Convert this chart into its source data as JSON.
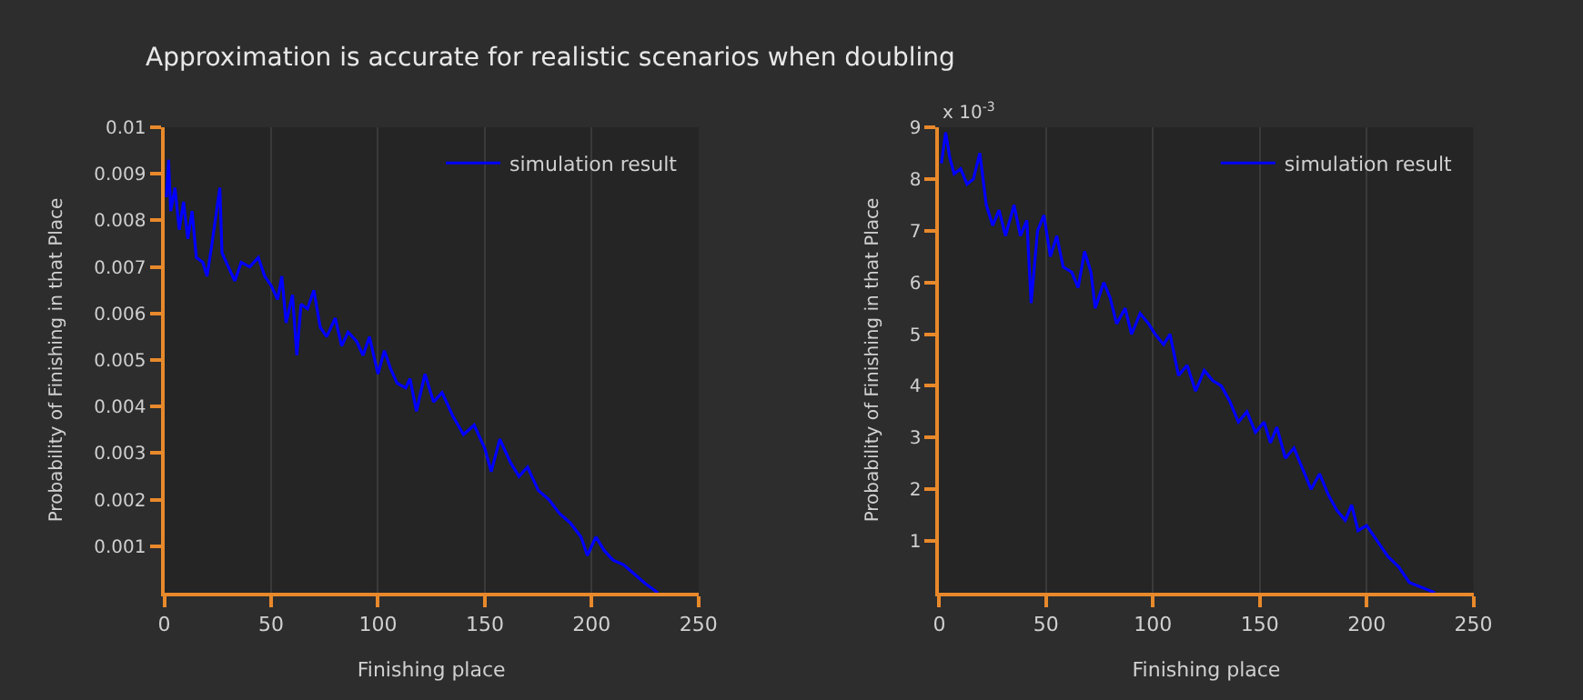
{
  "chart_data": [
    {
      "type": "line",
      "title": "Approximation is accurate for realistic scenarios when doubling",
      "xlabel": "Finishing place",
      "ylabel": "Probability of Finishing in that Place",
      "xlim": [
        0,
        250
      ],
      "xticks": [
        0,
        50,
        100,
        150,
        200,
        250
      ],
      "ylim": [
        0,
        0.01
      ],
      "yticks": [
        0.001,
        0.002,
        0.003,
        0.004,
        0.005,
        0.006,
        0.007,
        0.008,
        0.009,
        0.01
      ],
      "grid": "x",
      "legend": "top right",
      "line_style": "solid",
      "series": [
        {
          "name": "simulation result",
          "color": "#0000ff",
          "x": [
            1,
            2,
            3,
            5,
            7,
            9,
            11,
            13,
            15,
            18,
            20,
            22,
            26,
            27,
            30,
            33,
            36,
            40,
            44,
            47,
            50,
            53,
            55,
            57,
            60,
            62,
            64,
            67,
            70,
            73,
            76,
            80,
            83,
            86,
            90,
            93,
            96,
            100,
            103,
            106,
            109,
            113,
            115,
            118,
            122,
            126,
            130,
            135,
            140,
            145,
            150,
            153,
            157,
            162,
            166,
            170,
            175,
            180,
            185,
            190,
            195,
            198,
            202,
            206,
            210,
            215,
            220,
            225,
            231
          ],
          "values": [
            0.0085,
            0.0093,
            0.0082,
            0.0087,
            0.0078,
            0.0084,
            0.0076,
            0.0082,
            0.0072,
            0.0071,
            0.0068,
            0.0074,
            0.0087,
            0.0073,
            0.007,
            0.0067,
            0.0071,
            0.007,
            0.0072,
            0.0068,
            0.0066,
            0.0063,
            0.0068,
            0.0058,
            0.0064,
            0.0051,
            0.0062,
            0.0061,
            0.0065,
            0.0057,
            0.0055,
            0.0059,
            0.0053,
            0.0056,
            0.0054,
            0.0051,
            0.0055,
            0.0047,
            0.0052,
            0.0048,
            0.0045,
            0.0044,
            0.0046,
            0.0039,
            0.0047,
            0.0041,
            0.0043,
            0.0038,
            0.0034,
            0.0036,
            0.0031,
            0.0026,
            0.0033,
            0.0028,
            0.0025,
            0.0027,
            0.0022,
            0.002,
            0.0017,
            0.0015,
            0.0012,
            0.0008,
            0.0012,
            0.0009,
            0.0007,
            0.0006,
            0.0004,
            0.0002,
            0.0
          ]
        }
      ]
    },
    {
      "type": "line",
      "xlabel": "Finishing place",
      "ylabel": "Probability of Finishing in that Place",
      "annotations": [
        "x 10$^{-3}$"
      ],
      "xlim": [
        0,
        250
      ],
      "xticks": [
        0,
        50,
        100,
        150,
        200,
        250
      ],
      "ylim": [
        0,
        9
      ],
      "yticks": [
        1,
        2,
        3,
        4,
        5,
        6,
        7,
        8,
        9
      ],
      "grid": "x",
      "legend": "top right",
      "line_style": "solid",
      "series": [
        {
          "name": "simulation result",
          "color": "#0000ff",
          "x": [
            1,
            3,
            5,
            7,
            10,
            13,
            16,
            19,
            22,
            25,
            28,
            31,
            35,
            38,
            41,
            43,
            46,
            49,
            52,
            55,
            58,
            62,
            65,
            68,
            71,
            73,
            77,
            80,
            83,
            87,
            90,
            94,
            98,
            101,
            105,
            108,
            112,
            116,
            120,
            124,
            128,
            132,
            136,
            140,
            144,
            148,
            152,
            155,
            158,
            162,
            166,
            170,
            174,
            178,
            182,
            186,
            190,
            193,
            196,
            200,
            205,
            210,
            215,
            220,
            232
          ],
          "values": [
            8.3,
            8.9,
            8.4,
            8.1,
            8.2,
            7.9,
            8.0,
            8.5,
            7.5,
            7.1,
            7.4,
            6.9,
            7.5,
            6.9,
            7.2,
            5.6,
            7.0,
            7.3,
            6.5,
            6.9,
            6.3,
            6.2,
            5.9,
            6.6,
            6.2,
            5.5,
            6.0,
            5.7,
            5.2,
            5.5,
            5.0,
            5.4,
            5.2,
            5.0,
            4.8,
            5.0,
            4.2,
            4.4,
            3.9,
            4.3,
            4.1,
            4.0,
            3.7,
            3.3,
            3.5,
            3.1,
            3.3,
            2.9,
            3.2,
            2.6,
            2.8,
            2.4,
            2.0,
            2.3,
            1.9,
            1.6,
            1.4,
            1.7,
            1.2,
            1.3,
            1.0,
            0.7,
            0.5,
            0.2,
            0.0
          ]
        }
      ]
    }
  ]
}
